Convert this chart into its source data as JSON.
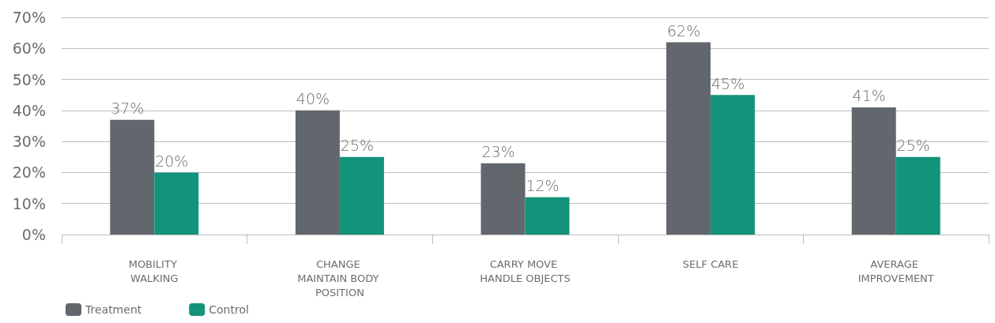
{
  "chart_data": {
    "type": "bar",
    "categories": [
      "MOBILITY WALKING",
      "CHANGE MAINTAIN BODY POSITION",
      "CARRY MOVE HANDLE OBJECTS",
      "SELF CARE",
      "AVERAGE IMPROVEMENT"
    ],
    "series": [
      {
        "name": "Treatment",
        "color": "#62676d",
        "values": [
          37,
          40,
          23,
          62,
          41
        ],
        "value_labels": [
          "37%",
          "40%",
          "23%",
          "62%",
          "41%"
        ]
      },
      {
        "name": "Control",
        "color": "#12937a",
        "values": [
          20,
          25,
          12,
          45,
          25
        ],
        "value_labels": [
          "20%",
          "25%",
          "12%",
          "45%",
          "25%"
        ]
      }
    ],
    "ylim": [
      0,
      70
    ],
    "yticks": [
      {
        "value": 0,
        "label": "0%"
      },
      {
        "value": 10,
        "label": "10%"
      },
      {
        "value": 20,
        "label": "20%"
      },
      {
        "value": 30,
        "label": "30%"
      },
      {
        "value": 40,
        "label": "40%"
      },
      {
        "value": 50,
        "label": "50%"
      },
      {
        "value": 60,
        "label": "60%"
      },
      {
        "value": 70,
        "label": "70%"
      }
    ],
    "grid": "y",
    "legend": "bottom left"
  }
}
